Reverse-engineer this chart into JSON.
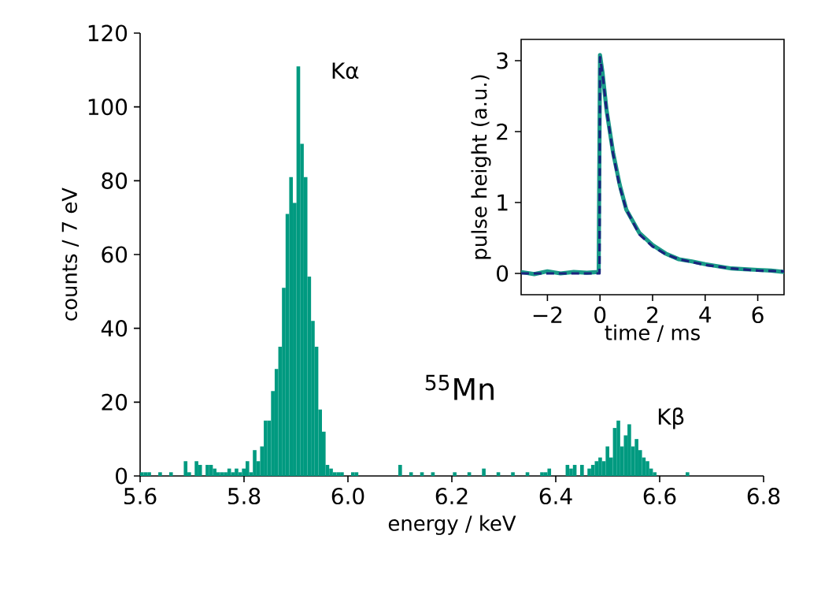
{
  "chart_data": [
    {
      "type": "histogram",
      "xlabel": "energy / keV",
      "ylabel": "counts / 7 eV",
      "color": "#009a80",
      "bins": [
        5.6,
        5.607,
        5.614,
        5.621,
        5.635,
        5.642,
        5.656,
        5.663,
        5.684,
        5.691,
        5.698,
        5.705,
        5.712,
        5.719,
        5.726,
        5.733,
        5.74,
        5.747,
        5.754,
        5.761,
        5.768,
        5.775,
        5.782,
        5.789,
        5.796,
        5.803,
        5.81,
        5.817,
        5.824,
        5.831,
        5.838,
        5.845,
        5.852,
        5.859,
        5.866,
        5.873,
        5.88,
        5.887,
        5.894,
        5.901,
        5.908,
        5.915,
        5.922,
        5.929,
        5.936,
        5.943,
        5.95,
        5.957,
        5.964,
        5.971,
        5.978,
        5.985,
        5.992,
        6.006,
        6.013,
        6.02,
        6.097,
        6.104,
        6.118,
        6.125,
        6.139,
        6.146,
        6.16,
        6.167,
        6.202,
        6.209,
        6.23,
        6.237,
        6.258,
        6.265,
        6.286,
        6.293,
        6.314,
        6.321,
        6.342,
        6.349,
        6.37,
        6.377,
        6.384,
        6.391,
        6.419,
        6.426,
        6.433,
        6.44,
        6.447,
        6.454,
        6.461,
        6.468,
        6.475,
        6.482,
        6.489,
        6.496,
        6.503,
        6.51,
        6.517,
        6.524,
        6.531,
        6.538,
        6.545,
        6.552,
        6.559,
        6.566,
        6.573,
        6.58,
        6.587,
        6.594,
        6.65,
        6.657
      ],
      "values": [
        1,
        1,
        1,
        0,
        1,
        0,
        1,
        0,
        4,
        1,
        0,
        4,
        3,
        0,
        3,
        3,
        2,
        1,
        1,
        1,
        2,
        1,
        2,
        1,
        2,
        4,
        1,
        7,
        4,
        8,
        15,
        15,
        23,
        29,
        35,
        51,
        71,
        81,
        74,
        111,
        90,
        81,
        54,
        42,
        35,
        18,
        12,
        3,
        2,
        1,
        1,
        1,
        0,
        1,
        1,
        0,
        3,
        0,
        1,
        0,
        1,
        0,
        1,
        0,
        1,
        0,
        1,
        0,
        2,
        0,
        1,
        0,
        1,
        0,
        1,
        0,
        1,
        1,
        2,
        0,
        3,
        2,
        3,
        0,
        3,
        0,
        2,
        3,
        4,
        5,
        4,
        8,
        5,
        13,
        15,
        8,
        11,
        14,
        8,
        10,
        7,
        5,
        4,
        2,
        1,
        0,
        1
      ],
      "xlim": [
        5.6,
        6.8
      ],
      "xticks": [
        5.6,
        5.8,
        {
          "value": 6.0,
          "label": "6.0"
        },
        6.2,
        6.4,
        6.6,
        6.8
      ],
      "ylim": [
        0,
        120
      ],
      "yticks": [
        0,
        20,
        40,
        60,
        80,
        100,
        120
      ],
      "annotations": [
        "Kα",
        "Kβ",
        "$^{55}$Mn"
      ]
    },
    {
      "type": "line",
      "xlabel": "time / ms",
      "ylabel": "pulse height (a.u.)",
      "xlim": [
        -3,
        7
      ],
      "ylim": [
        -0.3,
        3.3
      ],
      "xticks": [
        {
          "value": -2,
          "label": "−2"
        },
        0,
        2,
        4,
        6
      ],
      "yticks": [
        0,
        1,
        2,
        3
      ],
      "series": [
        {
          "color": "#1a9a88",
          "line_style": "solid",
          "x": [
            -3,
            -2.5,
            -2,
            -1.5,
            -1,
            -0.5,
            -0.05,
            0,
            0.1,
            0.25,
            0.5,
            0.75,
            1,
            1.5,
            2,
            2.5,
            3,
            3.5,
            4,
            4.5,
            5,
            5.5,
            6,
            6.5,
            7
          ],
          "values": [
            0.02,
            -0.01,
            0.03,
            0.0,
            0.02,
            0.01,
            0.02,
            3.08,
            2.82,
            2.3,
            1.7,
            1.25,
            0.9,
            0.57,
            0.4,
            0.28,
            0.2,
            0.17,
            0.13,
            0.1,
            0.07,
            0.06,
            0.05,
            0.04,
            0.02
          ]
        },
        {
          "color": "#1a237e",
          "line_style": "dashed",
          "x": [
            -3,
            -0.02,
            0,
            0.1,
            0.25,
            0.5,
            0.75,
            1,
            1.5,
            2,
            2.5,
            3,
            4,
            5,
            6,
            7
          ],
          "values": [
            0,
            0,
            3.05,
            2.8,
            2.3,
            1.68,
            1.22,
            0.9,
            0.55,
            0.38,
            0.27,
            0.2,
            0.12,
            0.07,
            0.04,
            0.03
          ]
        }
      ]
    }
  ]
}
